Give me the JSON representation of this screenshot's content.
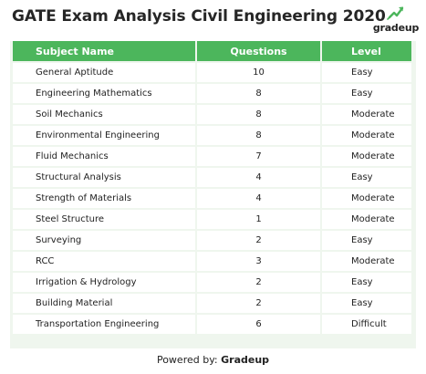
{
  "title": "GATE Exam Analysis Civil Engineering 2020",
  "logo": {
    "text": "gradeup",
    "icon": "rocket-icon",
    "icon_color": "#4cb65c"
  },
  "colors": {
    "header_bg": "#4cb65c",
    "table_bg": "#eff6ee"
  },
  "table": {
    "columns": [
      "Subject Name",
      "Questions",
      "Level"
    ],
    "rows": [
      [
        "General Aptitude",
        "10",
        "Easy"
      ],
      [
        "Engineering Mathematics",
        "8",
        "Easy"
      ],
      [
        "Soil Mechanics",
        "8",
        "Moderate"
      ],
      [
        "Environmental Engineering",
        "8",
        "Moderate"
      ],
      [
        "Fluid Mechanics",
        "7",
        "Moderate"
      ],
      [
        "Structural Analysis",
        "4",
        "Easy"
      ],
      [
        "Strength of Materials",
        "4",
        "Moderate"
      ],
      [
        "Steel Structure",
        "1",
        "Moderate"
      ],
      [
        "Surveying",
        "2",
        "Easy"
      ],
      [
        "RCC",
        "3",
        "Moderate"
      ],
      [
        "Irrigation & Hydrology",
        "2",
        "Easy"
      ],
      [
        "Building Material",
        "2",
        "Easy"
      ],
      [
        "Transportation Engineering",
        "6",
        "Difficult"
      ]
    ]
  },
  "footer": {
    "prefix": "Powered by:",
    "brand": "Gradeup"
  }
}
